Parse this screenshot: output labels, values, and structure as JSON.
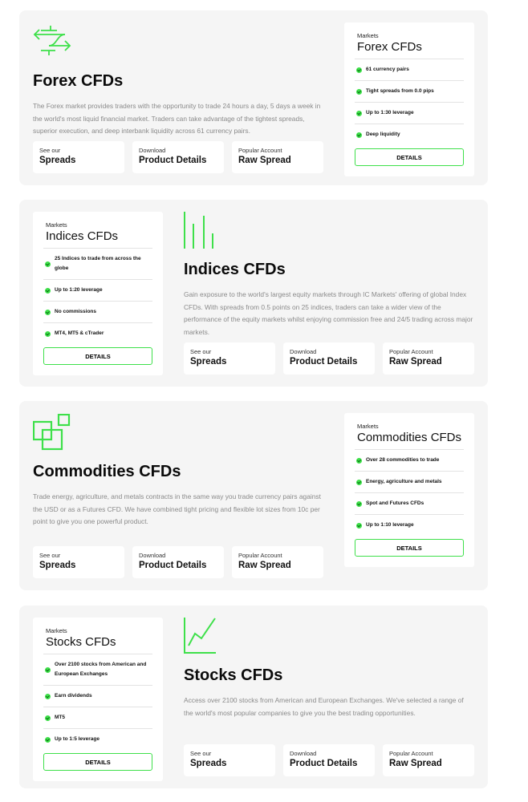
{
  "accent_color": "#3ee04a",
  "sections": [
    {
      "icon": "exchange-arrows-icon",
      "title": "Forex CFDs",
      "description": "The Forex market provides traders with the opportunity to trade 24 hours a day, 5 days a week in the world's most liquid financial market. Traders can take advantage of the tightest spreads, superior execution, and deep interbank liquidity across 61 currency pairs.",
      "links": [
        {
          "small": "See our",
          "large": "Spreads"
        },
        {
          "small": "Download",
          "large": "Product Details"
        },
        {
          "small": "Popular Account",
          "large": "Raw Spread"
        }
      ],
      "card": {
        "label": "Markets",
        "title": "Forex CFDs",
        "features": [
          "61 currency pairs",
          "Tight spreads from 0.0 pips",
          "Up to 1:30 leverage",
          "Deep liquidity"
        ],
        "button": "DETAILS"
      }
    },
    {
      "icon": "bar-lines-icon",
      "title": "Indices CFDs",
      "description": "Gain exposure to the world's largest equity markets through IC Markets' offering of global Index CFDs. With spreads from 0.5 points on 25 indices, traders can take a wider view of the performance of the equity markets whilst enjoying commission free and 24/5 trading across major markets.",
      "links": [
        {
          "small": "See our",
          "large": "Spreads"
        },
        {
          "small": "Download",
          "large": "Product Details"
        },
        {
          "small": "Popular Account",
          "large": "Raw Spread"
        }
      ],
      "card": {
        "label": "Markets",
        "title": "Indices CFDs",
        "features": [
          "25 Indices to trade from across the globe",
          "Up to 1:20 leverage",
          "No commissions",
          "MT4, MT5 & cTrader"
        ],
        "button": "DETAILS"
      }
    },
    {
      "icon": "overlapping-squares-icon",
      "title": "Commodities CFDs",
      "description": "Trade energy, agriculture, and metals contracts in the same way you trade currency pairs against the USD or as a Futures CFD. We have combined tight pricing and flexible lot sizes from 10c per point to give you one powerful product.",
      "links": [
        {
          "small": "See our",
          "large": "Spreads"
        },
        {
          "small": "Download",
          "large": "Product Details"
        },
        {
          "small": "Popular Account",
          "large": "Raw Spread"
        }
      ],
      "card": {
        "label": "Markets",
        "title": "Commodities CFDs",
        "features": [
          "Over 28 commodities to trade",
          "Energy, agriculture and metals",
          "Spot and Futures CFDs",
          "Up to 1:10 leverage"
        ],
        "button": "DETAILS"
      }
    },
    {
      "icon": "line-chart-icon",
      "title": "Stocks CFDs",
      "description": "Access over 2100 stocks from American and European Exchanges. We've selected a range of the world's most popular companies to give you the best trading opportunities.",
      "links": [
        {
          "small": "See our",
          "large": "Spreads"
        },
        {
          "small": "Download",
          "large": "Product Details"
        },
        {
          "small": "Popular Account",
          "large": "Raw Spread"
        }
      ],
      "card": {
        "label": "Markets",
        "title": "Stocks CFDs",
        "features": [
          "Over 2100 stocks from American and European Exchanges",
          "Earn dividends",
          "MT5",
          "Up to 1:5 leverage"
        ],
        "button": "DETAILS"
      }
    }
  ]
}
